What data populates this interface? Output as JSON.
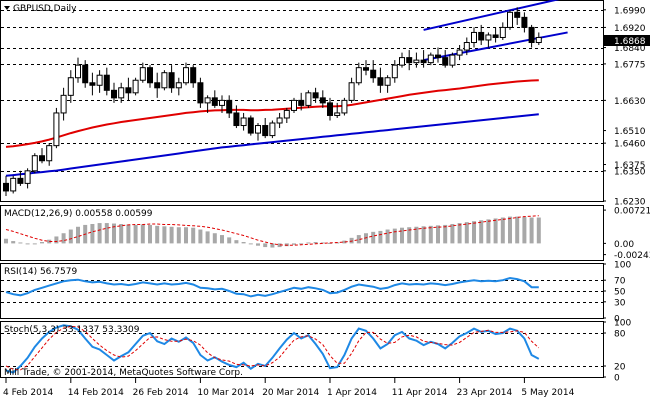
{
  "header": {
    "symbol_title": "GBPUSD,Daily"
  },
  "footer": {
    "copyright": "Mill Trade, © 2001-2014, MetaQuotes Software Corp."
  },
  "colors": {
    "bull_body": "#ffffff",
    "bear_body": "#000000",
    "ma_fast": "#e00000",
    "ma_slow": "#0000cc",
    "channel": "#0000cc",
    "macd_hist": "#a8a8a8",
    "macd_signal": "#e00000",
    "rsi_line": "#1e88e5",
    "stoch_main": "#1e88e5",
    "stoch_signal": "#e00000",
    "level_line": "#000000"
  },
  "chart_data": [
    {
      "type": "candlestick",
      "title": "GBPUSD,Daily",
      "ylim": [
        1.623,
        1.7025
      ],
      "price_levels": [
        "1.6990",
        "1.6920",
        "1.6868",
        "1.6840",
        "1.6775",
        "1.6630",
        "1.6510",
        "1.6460",
        "1.6375",
        "1.6350",
        "1.6230"
      ],
      "dashed_levels": [
        1.699,
        1.692,
        1.684,
        1.6775,
        1.663,
        1.646,
        1.635
      ],
      "x_labels": [
        "4 Feb 2014",
        "14 Feb 2014",
        "26 Feb 2014",
        "10 Mar 2014",
        "20 Mar 2014",
        "1 Apr 2014",
        "11 Apr 2014",
        "23 Apr 2014",
        "5 May 2014"
      ],
      "x_label_index": [
        0,
        9,
        18,
        27,
        36,
        45,
        54,
        63,
        72
      ],
      "candles": [
        [
          1.63,
          1.633,
          1.625,
          1.627
        ],
        [
          1.627,
          1.633,
          1.626,
          1.632
        ],
        [
          1.632,
          1.635,
          1.629,
          1.63
        ],
        [
          1.63,
          1.636,
          1.628,
          1.635
        ],
        [
          1.635,
          1.642,
          1.634,
          1.641
        ],
        [
          1.641,
          1.644,
          1.638,
          1.639
        ],
        [
          1.639,
          1.646,
          1.637,
          1.645
        ],
        [
          1.645,
          1.66,
          1.644,
          1.658
        ],
        [
          1.658,
          1.668,
          1.655,
          1.665
        ],
        [
          1.665,
          1.675,
          1.662,
          1.672
        ],
        [
          1.672,
          1.68,
          1.67,
          1.677
        ],
        [
          1.677,
          1.679,
          1.668,
          1.67
        ],
        [
          1.67,
          1.674,
          1.665,
          1.669
        ],
        [
          1.669,
          1.675,
          1.666,
          1.673
        ],
        [
          1.673,
          1.676,
          1.665,
          1.667
        ],
        [
          1.667,
          1.67,
          1.662,
          1.664
        ],
        [
          1.664,
          1.67,
          1.662,
          1.668
        ],
        [
          1.668,
          1.672,
          1.663,
          1.666
        ],
        [
          1.666,
          1.672,
          1.665,
          1.671
        ],
        [
          1.671,
          1.678,
          1.67,
          1.676
        ],
        [
          1.676,
          1.677,
          1.668,
          1.67
        ],
        [
          1.67,
          1.674,
          1.664,
          1.668
        ],
        [
          1.668,
          1.675,
          1.667,
          1.674
        ],
        [
          1.674,
          1.677,
          1.666,
          1.668
        ],
        [
          1.668,
          1.672,
          1.665,
          1.67
        ],
        [
          1.67,
          1.678,
          1.669,
          1.676
        ],
        [
          1.676,
          1.677,
          1.668,
          1.67
        ],
        [
          1.67,
          1.672,
          1.66,
          1.662
        ],
        [
          1.662,
          1.665,
          1.658,
          1.664
        ],
        [
          1.664,
          1.667,
          1.66,
          1.661
        ],
        [
          1.661,
          1.665,
          1.658,
          1.663
        ],
        [
          1.663,
          1.665,
          1.656,
          1.658
        ],
        [
          1.658,
          1.661,
          1.652,
          1.653
        ],
        [
          1.653,
          1.658,
          1.651,
          1.656
        ],
        [
          1.656,
          1.657,
          1.649,
          1.65
        ],
        [
          1.65,
          1.654,
          1.647,
          1.653
        ],
        [
          1.653,
          1.656,
          1.648,
          1.649
        ],
        [
          1.649,
          1.655,
          1.648,
          1.654
        ],
        [
          1.654,
          1.658,
          1.652,
          1.656
        ],
        [
          1.656,
          1.66,
          1.654,
          1.659
        ],
        [
          1.659,
          1.664,
          1.658,
          1.663
        ],
        [
          1.663,
          1.666,
          1.659,
          1.661
        ],
        [
          1.661,
          1.667,
          1.66,
          1.666
        ],
        [
          1.666,
          1.668,
          1.662,
          1.664
        ],
        [
          1.664,
          1.667,
          1.66,
          1.662
        ],
        [
          1.662,
          1.664,
          1.655,
          1.657
        ],
        [
          1.657,
          1.662,
          1.656,
          1.658
        ],
        [
          1.658,
          1.664,
          1.657,
          1.663
        ],
        [
          1.663,
          1.672,
          1.662,
          1.67
        ],
        [
          1.67,
          1.678,
          1.669,
          1.676
        ],
        [
          1.676,
          1.679,
          1.673,
          1.675
        ],
        [
          1.675,
          1.679,
          1.67,
          1.672
        ],
        [
          1.672,
          1.676,
          1.666,
          1.669
        ],
        [
          1.669,
          1.673,
          1.666,
          1.672
        ],
        [
          1.672,
          1.679,
          1.67,
          1.677
        ],
        [
          1.677,
          1.682,
          1.676,
          1.68
        ],
        [
          1.68,
          1.683,
          1.675,
          1.678
        ],
        [
          1.678,
          1.682,
          1.676,
          1.679
        ],
        [
          1.679,
          1.683,
          1.676,
          1.678
        ],
        [
          1.678,
          1.682,
          1.677,
          1.681
        ],
        [
          1.681,
          1.684,
          1.678,
          1.68
        ],
        [
          1.68,
          1.683,
          1.676,
          1.677
        ],
        [
          1.677,
          1.682,
          1.676,
          1.681
        ],
        [
          1.681,
          1.685,
          1.679,
          1.683
        ],
        [
          1.683,
          1.688,
          1.681,
          1.686
        ],
        [
          1.686,
          1.692,
          1.684,
          1.69
        ],
        [
          1.69,
          1.693,
          1.685,
          1.687
        ],
        [
          1.687,
          1.69,
          1.684,
          1.689
        ],
        [
          1.689,
          1.692,
          1.686,
          1.688
        ],
        [
          1.688,
          1.694,
          1.687,
          1.692
        ],
        [
          1.692,
          1.699,
          1.691,
          1.698
        ],
        [
          1.698,
          1.7,
          1.693,
          1.696
        ],
        [
          1.696,
          1.698,
          1.69,
          1.692
        ],
        [
          1.692,
          1.693,
          1.684,
          1.686
        ],
        [
          1.686,
          1.69,
          1.685,
          1.688
        ]
      ],
      "ma_fast": [
        1.6445,
        1.6448,
        1.6452,
        1.6456,
        1.6461,
        1.6467,
        1.6474,
        1.6482,
        1.6491,
        1.65,
        1.6508,
        1.6515,
        1.6522,
        1.6528,
        1.6534,
        1.6539,
        1.6544,
        1.6548,
        1.6552,
        1.6556,
        1.656,
        1.6564,
        1.6568,
        1.6572,
        1.6576,
        1.658,
        1.6583,
        1.6586,
        1.6588,
        1.659,
        1.6591,
        1.6592,
        1.6592,
        1.6592,
        1.6591,
        1.6591,
        1.6592,
        1.6593,
        1.6595,
        1.6597,
        1.6599,
        1.6601,
        1.6603,
        1.6605,
        1.6606,
        1.6606,
        1.6607,
        1.6609,
        1.6612,
        1.6617,
        1.6622,
        1.6627,
        1.6632,
        1.6637,
        1.6642,
        1.6647,
        1.6652,
        1.6656,
        1.666,
        1.6664,
        1.6668,
        1.6671,
        1.6674,
        1.6677,
        1.6681,
        1.6685,
        1.6689,
        1.6693,
        1.6696,
        1.6699,
        1.6702,
        1.6705,
        1.6707,
        1.6709,
        1.671
      ],
      "ma_slow": [
        1.633,
        1.6333,
        1.6336,
        1.6339,
        1.6342,
        1.6345,
        1.6348,
        1.6351,
        1.6355,
        1.6359,
        1.6363,
        1.6367,
        1.6371,
        1.6375,
        1.6379,
        1.6383,
        1.6387,
        1.6391,
        1.6395,
        1.6399,
        1.6403,
        1.6407,
        1.6411,
        1.6415,
        1.6419,
        1.6423,
        1.6427,
        1.6431,
        1.6435,
        1.6439,
        1.6443,
        1.6446,
        1.6449,
        1.6452,
        1.6455,
        1.6458,
        1.6461,
        1.6464,
        1.6467,
        1.647,
        1.6473,
        1.6476,
        1.6479,
        1.6482,
        1.6485,
        1.6488,
        1.6491,
        1.6494,
        1.6497,
        1.65,
        1.6503,
        1.6506,
        1.6509,
        1.6512,
        1.6515,
        1.6518,
        1.6521,
        1.6524,
        1.6527,
        1.653,
        1.6533,
        1.6536,
        1.6539,
        1.6542,
        1.6545,
        1.6548,
        1.6551,
        1.6554,
        1.6557,
        1.656,
        1.6563,
        1.6566,
        1.6569,
        1.6572,
        1.6575
      ],
      "channel": [
        {
          "from_index": 58,
          "from": 1.691,
          "to_index": 78,
          "to": 1.704
        },
        {
          "from_index": 58,
          "from": 1.679,
          "to_index": 78,
          "to": 1.69
        }
      ],
      "current_price": "1.6868"
    },
    {
      "type": "bar",
      "title": "MACD(12,26,9) 0.00558 0.00599",
      "ylim": [
        -0.0036,
        0.0081
      ],
      "axis_labels": [
        "0.00721",
        "0.00",
        "-0.00243"
      ],
      "histogram": [
        0.001,
        0.0005,
        0.0002,
        -0.0002,
        -0.0001,
        0.0003,
        0.0008,
        0.0015,
        0.0022,
        0.003,
        0.0036,
        0.004,
        0.0042,
        0.0044,
        0.0044,
        0.0043,
        0.0042,
        0.0041,
        0.004,
        0.0041,
        0.004,
        0.0038,
        0.0037,
        0.0036,
        0.0035,
        0.0035,
        0.0034,
        0.003,
        0.0026,
        0.0022,
        0.0018,
        0.0013,
        0.0007,
        0.0003,
        -0.0002,
        -0.0005,
        -0.0008,
        -0.0009,
        -0.0008,
        -0.0006,
        -0.0003,
        -0.0001,
        0.0002,
        0.0003,
        0.0002,
        0.0001,
        0.0002,
        0.0006,
        0.0012,
        0.0018,
        0.0022,
        0.0025,
        0.0027,
        0.003,
        0.0032,
        0.0034,
        0.0035,
        0.0036,
        0.0037,
        0.0038,
        0.0039,
        0.004,
        0.0042,
        0.0044,
        0.0046,
        0.0048,
        0.005,
        0.0052,
        0.0054,
        0.0056,
        0.0058,
        0.0058,
        0.0057,
        0.0056,
        0.0056
      ],
      "signal": [
        0.003,
        0.0026,
        0.0021,
        0.0016,
        0.0011,
        0.0007,
        0.0004,
        0.0004,
        0.0006,
        0.001,
        0.0015,
        0.002,
        0.0025,
        0.0029,
        0.0033,
        0.0036,
        0.0038,
        0.004,
        0.0041,
        0.0041,
        0.0042,
        0.0042,
        0.0041,
        0.0041,
        0.004,
        0.0039,
        0.0038,
        0.0037,
        0.0035,
        0.0032,
        0.0029,
        0.0025,
        0.0021,
        0.0017,
        0.0012,
        0.0007,
        0.0003,
        -0.0001,
        -0.0003,
        -0.0004,
        -0.0004,
        -0.0003,
        -0.0002,
        -0.0001,
        0.0,
        0.0001,
        0.0002,
        0.0003,
        0.0005,
        0.0008,
        0.0012,
        0.0016,
        0.0019,
        0.0022,
        0.0025,
        0.0027,
        0.0029,
        0.0031,
        0.0033,
        0.0034,
        0.0035,
        0.0036,
        0.0038,
        0.004,
        0.0042,
        0.0044,
        0.0046,
        0.0048,
        0.005,
        0.0052,
        0.0054,
        0.0056,
        0.0058,
        0.0059,
        0.006
      ]
    },
    {
      "type": "line",
      "title": "RSI(14) 56.7579",
      "ylim": [
        0,
        100
      ],
      "axis_labels": [
        "100",
        "70",
        "50",
        "30",
        "0"
      ],
      "levels": [
        70,
        50,
        30
      ],
      "values": [
        48,
        44,
        42,
        46,
        52,
        56,
        60,
        64,
        68,
        70,
        71,
        68,
        66,
        67,
        64,
        62,
        63,
        61,
        63,
        66,
        64,
        62,
        64,
        62,
        63,
        65,
        62,
        56,
        55,
        53,
        54,
        50,
        45,
        44,
        40,
        43,
        41,
        44,
        48,
        52,
        56,
        54,
        57,
        55,
        52,
        46,
        47,
        52,
        58,
        62,
        60,
        58,
        54,
        56,
        61,
        64,
        62,
        63,
        62,
        64,
        63,
        61,
        63,
        66,
        68,
        70,
        68,
        69,
        68,
        70,
        74,
        72,
        68,
        57,
        57
      ]
    },
    {
      "type": "line",
      "title": "Stoch(5,3,3) 33.1337 53.3309",
      "ylim": [
        0,
        100
      ],
      "axis_labels": [
        "100",
        "80",
        "20",
        "0"
      ],
      "levels": [
        80,
        20
      ],
      "main": [
        12,
        8,
        20,
        35,
        55,
        70,
        82,
        90,
        94,
        92,
        86,
        70,
        55,
        50,
        40,
        30,
        38,
        45,
        60,
        75,
        80,
        65,
        60,
        70,
        64,
        72,
        62,
        40,
        30,
        36,
        28,
        22,
        18,
        26,
        15,
        24,
        20,
        35,
        52,
        68,
        80,
        70,
        76,
        60,
        42,
        16,
        18,
        40,
        70,
        88,
        84,
        70,
        52,
        60,
        76,
        82,
        70,
        66,
        58,
        64,
        60,
        52,
        62,
        74,
        80,
        88,
        82,
        84,
        78,
        80,
        88,
        84,
        70,
        40,
        33
      ],
      "signal": [
        20,
        14,
        13,
        21,
        37,
        53,
        69,
        81,
        89,
        92,
        91,
        83,
        70,
        58,
        48,
        40,
        36,
        38,
        48,
        60,
        72,
        73,
        68,
        65,
        65,
        69,
        66,
        58,
        44,
        35,
        31,
        29,
        23,
        22,
        20,
        22,
        20,
        26,
        36,
        52,
        67,
        73,
        75,
        69,
        59,
        39,
        25,
        25,
        43,
        66,
        81,
        81,
        69,
        61,
        63,
        73,
        76,
        73,
        65,
        63,
        61,
        59,
        58,
        63,
        72,
        81,
        83,
        85,
        81,
        81,
        82,
        84,
        81,
        65,
        53
      ]
    }
  ]
}
